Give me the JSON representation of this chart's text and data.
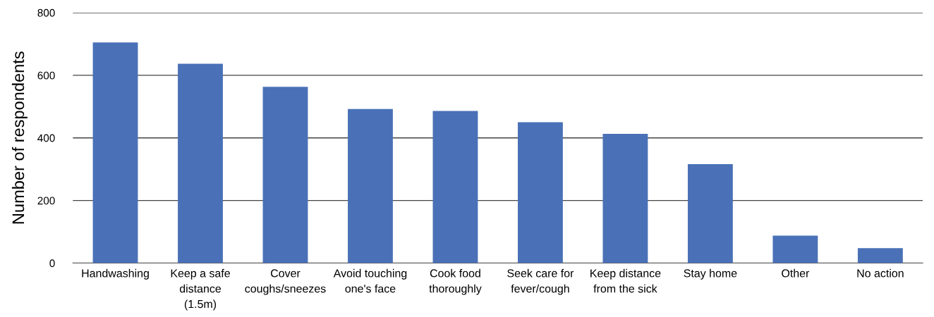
{
  "chart_data": {
    "type": "bar",
    "ylabel": "Number of respondents",
    "categories": [
      "Handwashing",
      "Keep a safe\ndistance\n(1.5m)",
      "Cover\ncoughs/sneezes",
      "Avoid touching\none's face",
      "Cook food\nthoroughly",
      "Seek care for\nfever/cough",
      "Keep distance\nfrom the sick",
      "Stay home",
      "Other",
      "No action"
    ],
    "values": [
      705,
      637,
      563,
      492,
      486,
      450,
      413,
      316,
      88,
      48
    ],
    "color": "#4a71b7",
    "ylim": [
      0,
      800
    ],
    "yticks": [
      0,
      200,
      400,
      600,
      800
    ],
    "grid": "y"
  }
}
